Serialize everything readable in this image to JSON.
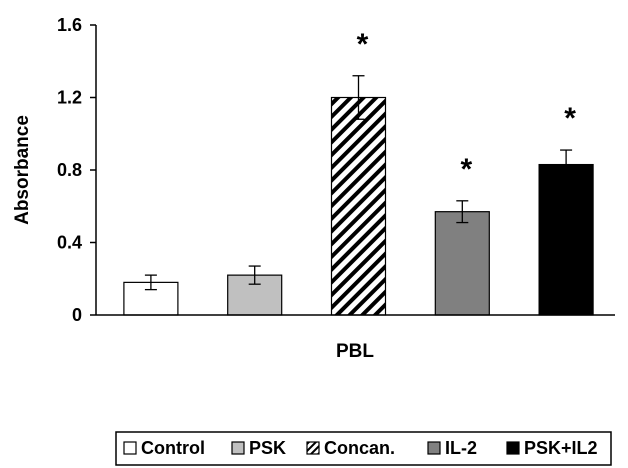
{
  "chart_data": {
    "type": "bar",
    "categories": [
      "Control",
      "PSK",
      "Concan.",
      "IL-2",
      "PSK+IL2"
    ],
    "values": [
      0.18,
      0.22,
      1.2,
      0.57,
      0.83
    ],
    "errors": [
      0.04,
      0.05,
      0.12,
      0.06,
      0.08
    ],
    "significance": [
      "",
      "",
      "*",
      "*",
      "*"
    ],
    "fills": [
      "#ffffff",
      "#c0c0c0",
      "hatch",
      "#808080",
      "#000000"
    ],
    "xlabel": "PBL",
    "ylabel": "Absorbance",
    "ylim": [
      0,
      1.6
    ],
    "yticks": [
      "0",
      "0.4",
      "0.8",
      "1.2",
      "1.6"
    ],
    "grid": false,
    "legend": {
      "placement": "bottom",
      "entries": [
        "Control",
        "PSK",
        "Concan.",
        "IL-2",
        "PSK+IL2"
      ]
    }
  }
}
